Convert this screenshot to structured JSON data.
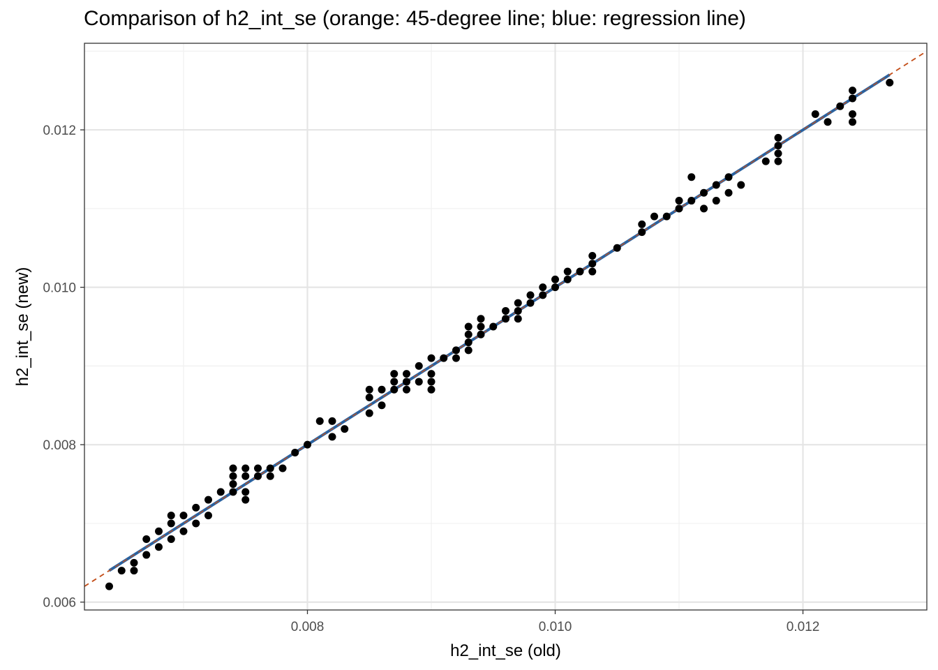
{
  "chart_data": {
    "type": "scatter",
    "title": "Comparison of h2_int_se (orange: 45-degree line; blue: regression line)",
    "xlabel": "h2_int_se (old)",
    "ylabel": "h2_int_se (new)",
    "xlim": [
      0.0062,
      0.013
    ],
    "ylim": [
      0.0059,
      0.0131
    ],
    "x_ticks": [
      0.008,
      0.01,
      0.012
    ],
    "x_tick_labels": [
      "0.008",
      "0.010",
      "0.012"
    ],
    "y_ticks": [
      0.006,
      0.008,
      0.01,
      0.012
    ],
    "y_tick_labels": [
      "0.006",
      "0.008",
      "0.010",
      "0.012"
    ],
    "grid": true,
    "colors": {
      "points": "#000000",
      "identity_line": "#c4501b",
      "regression_line": "#2a62a0",
      "grid_major": "#e5e5e5",
      "grid_minor": "#f0f0f0"
    },
    "identity_line": {
      "style": "dashed",
      "slope": 1,
      "intercept": 0
    },
    "regression_line": {
      "x_range": [
        0.0064,
        0.0127
      ],
      "slope": 1.0,
      "intercept": 0.0
    },
    "points": [
      [
        0.0064,
        0.0062
      ],
      [
        0.0065,
        0.0064
      ],
      [
        0.0066,
        0.0064
      ],
      [
        0.0066,
        0.0065
      ],
      [
        0.0067,
        0.0066
      ],
      [
        0.0067,
        0.0068
      ],
      [
        0.0068,
        0.0067
      ],
      [
        0.0068,
        0.0069
      ],
      [
        0.0069,
        0.0068
      ],
      [
        0.0069,
        0.007
      ],
      [
        0.0069,
        0.0071
      ],
      [
        0.007,
        0.0069
      ],
      [
        0.007,
        0.0071
      ],
      [
        0.0071,
        0.007
      ],
      [
        0.0071,
        0.0072
      ],
      [
        0.0072,
        0.0071
      ],
      [
        0.0072,
        0.0073
      ],
      [
        0.0073,
        0.0074
      ],
      [
        0.0074,
        0.0074
      ],
      [
        0.0074,
        0.0075
      ],
      [
        0.0074,
        0.0076
      ],
      [
        0.0074,
        0.0077
      ],
      [
        0.0075,
        0.0073
      ],
      [
        0.0075,
        0.0074
      ],
      [
        0.0075,
        0.0076
      ],
      [
        0.0075,
        0.0077
      ],
      [
        0.0076,
        0.0076
      ],
      [
        0.0076,
        0.0077
      ],
      [
        0.0077,
        0.0076
      ],
      [
        0.0077,
        0.0077
      ],
      [
        0.0078,
        0.0077
      ],
      [
        0.0079,
        0.0079
      ],
      [
        0.008,
        0.008
      ],
      [
        0.0081,
        0.0083
      ],
      [
        0.0082,
        0.0081
      ],
      [
        0.0082,
        0.0083
      ],
      [
        0.0083,
        0.0082
      ],
      [
        0.0085,
        0.0084
      ],
      [
        0.0085,
        0.0086
      ],
      [
        0.0085,
        0.0087
      ],
      [
        0.0086,
        0.0085
      ],
      [
        0.0086,
        0.0087
      ],
      [
        0.0087,
        0.0087
      ],
      [
        0.0087,
        0.0088
      ],
      [
        0.0087,
        0.0089
      ],
      [
        0.0088,
        0.0087
      ],
      [
        0.0088,
        0.0088
      ],
      [
        0.0088,
        0.0089
      ],
      [
        0.0089,
        0.0088
      ],
      [
        0.0089,
        0.009
      ],
      [
        0.009,
        0.0087
      ],
      [
        0.009,
        0.0088
      ],
      [
        0.009,
        0.0089
      ],
      [
        0.009,
        0.0091
      ],
      [
        0.0091,
        0.0091
      ],
      [
        0.0092,
        0.0091
      ],
      [
        0.0092,
        0.0092
      ],
      [
        0.0093,
        0.0092
      ],
      [
        0.0093,
        0.0093
      ],
      [
        0.0093,
        0.0094
      ],
      [
        0.0093,
        0.0095
      ],
      [
        0.0094,
        0.0094
      ],
      [
        0.0094,
        0.0095
      ],
      [
        0.0094,
        0.0096
      ],
      [
        0.0095,
        0.0095
      ],
      [
        0.0096,
        0.0096
      ],
      [
        0.0096,
        0.0097
      ],
      [
        0.0097,
        0.0096
      ],
      [
        0.0097,
        0.0097
      ],
      [
        0.0097,
        0.0098
      ],
      [
        0.0098,
        0.0098
      ],
      [
        0.0098,
        0.0099
      ],
      [
        0.0099,
        0.0099
      ],
      [
        0.0099,
        0.01
      ],
      [
        0.01,
        0.01
      ],
      [
        0.01,
        0.0101
      ],
      [
        0.0101,
        0.0101
      ],
      [
        0.0101,
        0.0102
      ],
      [
        0.0102,
        0.0102
      ],
      [
        0.0103,
        0.0102
      ],
      [
        0.0103,
        0.0103
      ],
      [
        0.0103,
        0.0104
      ],
      [
        0.0105,
        0.0105
      ],
      [
        0.0107,
        0.0107
      ],
      [
        0.0107,
        0.0108
      ],
      [
        0.0108,
        0.0109
      ],
      [
        0.0109,
        0.0109
      ],
      [
        0.011,
        0.011
      ],
      [
        0.011,
        0.0111
      ],
      [
        0.0111,
        0.0111
      ],
      [
        0.0111,
        0.0114
      ],
      [
        0.0112,
        0.011
      ],
      [
        0.0112,
        0.0112
      ],
      [
        0.0113,
        0.0111
      ],
      [
        0.0113,
        0.0113
      ],
      [
        0.0114,
        0.0112
      ],
      [
        0.0114,
        0.0114
      ],
      [
        0.0115,
        0.0113
      ],
      [
        0.0117,
        0.0116
      ],
      [
        0.0118,
        0.0116
      ],
      [
        0.0118,
        0.0117
      ],
      [
        0.0118,
        0.0118
      ],
      [
        0.0118,
        0.0119
      ],
      [
        0.0121,
        0.0122
      ],
      [
        0.0122,
        0.0121
      ],
      [
        0.0123,
        0.0123
      ],
      [
        0.0124,
        0.0121
      ],
      [
        0.0124,
        0.0122
      ],
      [
        0.0124,
        0.0124
      ],
      [
        0.0124,
        0.0125
      ],
      [
        0.0127,
        0.0126
      ]
    ]
  }
}
